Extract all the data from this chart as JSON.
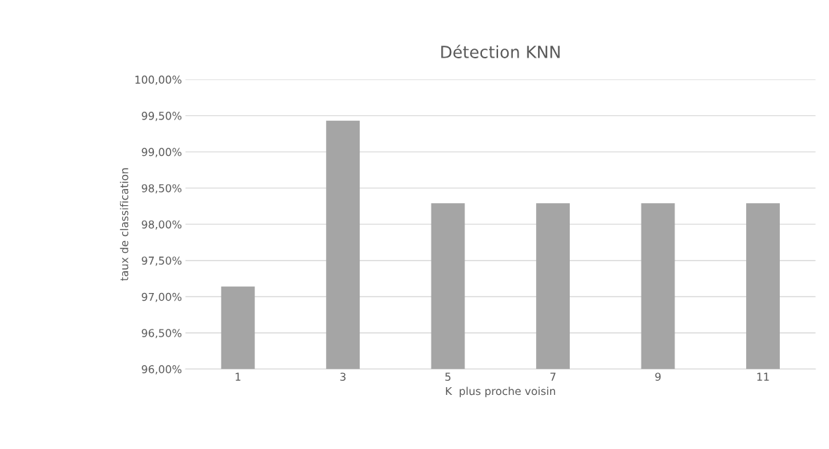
{
  "chart_data": {
    "type": "bar",
    "title": "Détection KNN",
    "xlabel": "K  plus proche voisin",
    "ylabel": "taux de classification",
    "categories": [
      "1",
      "3",
      "5",
      "7",
      "9",
      "11"
    ],
    "series": [
      {
        "color": "#a5a5a5",
        "values": [
          97.14,
          99.43,
          98.29,
          98.29,
          98.29,
          98.29
        ]
      }
    ],
    "ylim": [
      96,
      100
    ],
    "yticks": [
      {
        "value": 96,
        "label": "96,00%"
      },
      {
        "value": 96.5,
        "label": "96,50%"
      },
      {
        "value": 97,
        "label": "97,00%"
      },
      {
        "value": 97.5,
        "label": "97,50%"
      },
      {
        "value": 98,
        "label": "98,00%"
      },
      {
        "value": 98.5,
        "label": "98,50%"
      },
      {
        "value": 99,
        "label": "99,00%"
      },
      {
        "value": 99.5,
        "label": "99,50%"
      },
      {
        "value": 100,
        "label": "100,00%"
      }
    ],
    "grid": "y"
  }
}
